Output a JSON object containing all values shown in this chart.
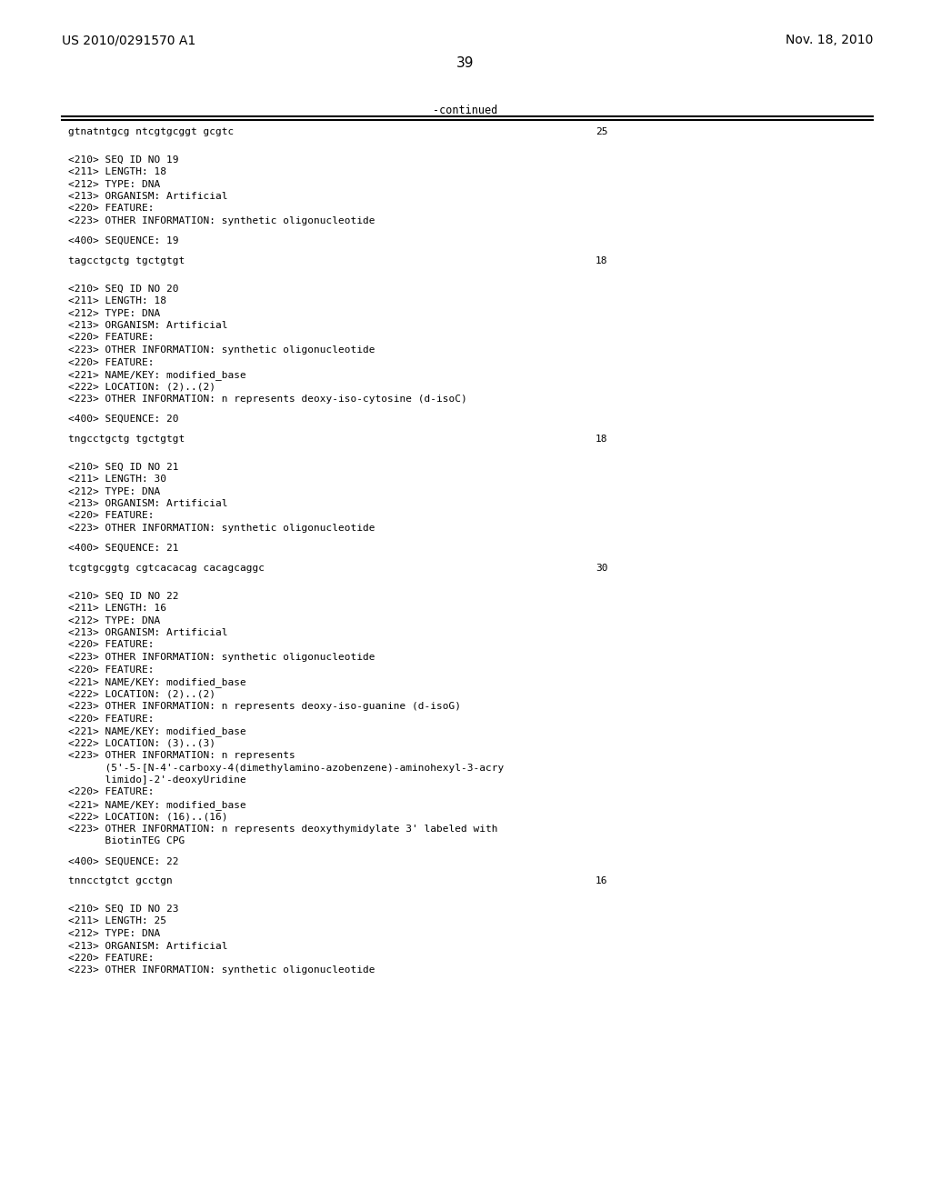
{
  "header_left": "US 2010/0291570 A1",
  "header_right": "Nov. 18, 2010",
  "page_number": "39",
  "continued_text": "-continued",
  "background_color": "#ffffff",
  "text_color": "#000000",
  "lines": [
    {
      "text": "gtnatntgcg ntcgtgcggt gcgtc",
      "right": "25",
      "type": "sequence"
    },
    {
      "text": "",
      "type": "blank"
    },
    {
      "text": "",
      "type": "blank"
    },
    {
      "text": "<210> SEQ ID NO 19",
      "type": "meta"
    },
    {
      "text": "<211> LENGTH: 18",
      "type": "meta"
    },
    {
      "text": "<212> TYPE: DNA",
      "type": "meta"
    },
    {
      "text": "<213> ORGANISM: Artificial",
      "type": "meta"
    },
    {
      "text": "<220> FEATURE:",
      "type": "meta"
    },
    {
      "text": "<223> OTHER INFORMATION: synthetic oligonucleotide",
      "type": "meta"
    },
    {
      "text": "",
      "type": "blank"
    },
    {
      "text": "<400> SEQUENCE: 19",
      "type": "meta"
    },
    {
      "text": "",
      "type": "blank"
    },
    {
      "text": "tagcctgctg tgctgtgt",
      "right": "18",
      "type": "sequence"
    },
    {
      "text": "",
      "type": "blank"
    },
    {
      "text": "",
      "type": "blank"
    },
    {
      "text": "<210> SEQ ID NO 20",
      "type": "meta"
    },
    {
      "text": "<211> LENGTH: 18",
      "type": "meta"
    },
    {
      "text": "<212> TYPE: DNA",
      "type": "meta"
    },
    {
      "text": "<213> ORGANISM: Artificial",
      "type": "meta"
    },
    {
      "text": "<220> FEATURE:",
      "type": "meta"
    },
    {
      "text": "<223> OTHER INFORMATION: synthetic oligonucleotide",
      "type": "meta"
    },
    {
      "text": "<220> FEATURE:",
      "type": "meta"
    },
    {
      "text": "<221> NAME/KEY: modified_base",
      "type": "meta"
    },
    {
      "text": "<222> LOCATION: (2)..(2)",
      "type": "meta"
    },
    {
      "text": "<223> OTHER INFORMATION: n represents deoxy-iso-cytosine (d-isoC)",
      "type": "meta"
    },
    {
      "text": "",
      "type": "blank"
    },
    {
      "text": "<400> SEQUENCE: 20",
      "type": "meta"
    },
    {
      "text": "",
      "type": "blank"
    },
    {
      "text": "tngcctgctg tgctgtgt",
      "right": "18",
      "type": "sequence"
    },
    {
      "text": "",
      "type": "blank"
    },
    {
      "text": "",
      "type": "blank"
    },
    {
      "text": "<210> SEQ ID NO 21",
      "type": "meta"
    },
    {
      "text": "<211> LENGTH: 30",
      "type": "meta"
    },
    {
      "text": "<212> TYPE: DNA",
      "type": "meta"
    },
    {
      "text": "<213> ORGANISM: Artificial",
      "type": "meta"
    },
    {
      "text": "<220> FEATURE:",
      "type": "meta"
    },
    {
      "text": "<223> OTHER INFORMATION: synthetic oligonucleotide",
      "type": "meta"
    },
    {
      "text": "",
      "type": "blank"
    },
    {
      "text": "<400> SEQUENCE: 21",
      "type": "meta"
    },
    {
      "text": "",
      "type": "blank"
    },
    {
      "text": "tcgtgcggtg cgtcacacag cacagcaggc",
      "right": "30",
      "type": "sequence"
    },
    {
      "text": "",
      "type": "blank"
    },
    {
      "text": "",
      "type": "blank"
    },
    {
      "text": "<210> SEQ ID NO 22",
      "type": "meta"
    },
    {
      "text": "<211> LENGTH: 16",
      "type": "meta"
    },
    {
      "text": "<212> TYPE: DNA",
      "type": "meta"
    },
    {
      "text": "<213> ORGANISM: Artificial",
      "type": "meta"
    },
    {
      "text": "<220> FEATURE:",
      "type": "meta"
    },
    {
      "text": "<223> OTHER INFORMATION: synthetic oligonucleotide",
      "type": "meta"
    },
    {
      "text": "<220> FEATURE:",
      "type": "meta"
    },
    {
      "text": "<221> NAME/KEY: modified_base",
      "type": "meta"
    },
    {
      "text": "<222> LOCATION: (2)..(2)",
      "type": "meta"
    },
    {
      "text": "<223> OTHER INFORMATION: n represents deoxy-iso-guanine (d-isoG)",
      "type": "meta"
    },
    {
      "text": "<220> FEATURE:",
      "type": "meta"
    },
    {
      "text": "<221> NAME/KEY: modified_base",
      "type": "meta"
    },
    {
      "text": "<222> LOCATION: (3)..(3)",
      "type": "meta"
    },
    {
      "text": "<223> OTHER INFORMATION: n represents",
      "type": "meta"
    },
    {
      "text": "      (5'-5-[N-4'-carboxy-4(dimethylamino-azobenzene)-aminohexyl-3-acry",
      "type": "meta"
    },
    {
      "text": "      limido]-2'-deoxyUridine",
      "type": "meta"
    },
    {
      "text": "<220> FEATURE:",
      "type": "meta"
    },
    {
      "text": "<221> NAME/KEY: modified_base",
      "type": "meta"
    },
    {
      "text": "<222> LOCATION: (16)..(16)",
      "type": "meta"
    },
    {
      "text": "<223> OTHER INFORMATION: n represents deoxythymidylate 3' labeled with",
      "type": "meta"
    },
    {
      "text": "      BiotinTEG CPG",
      "type": "meta"
    },
    {
      "text": "",
      "type": "blank"
    },
    {
      "text": "<400> SEQUENCE: 22",
      "type": "meta"
    },
    {
      "text": "",
      "type": "blank"
    },
    {
      "text": "tnncctgtct gcctgn",
      "right": "16",
      "type": "sequence"
    },
    {
      "text": "",
      "type": "blank"
    },
    {
      "text": "",
      "type": "blank"
    },
    {
      "text": "<210> SEQ ID NO 23",
      "type": "meta"
    },
    {
      "text": "<211> LENGTH: 25",
      "type": "meta"
    },
    {
      "text": "<212> TYPE: DNA",
      "type": "meta"
    },
    {
      "text": "<213> ORGANISM: Artificial",
      "type": "meta"
    },
    {
      "text": "<220> FEATURE:",
      "type": "meta"
    },
    {
      "text": "<223> OTHER INFORMATION: synthetic oligonucleotide",
      "type": "meta"
    }
  ]
}
